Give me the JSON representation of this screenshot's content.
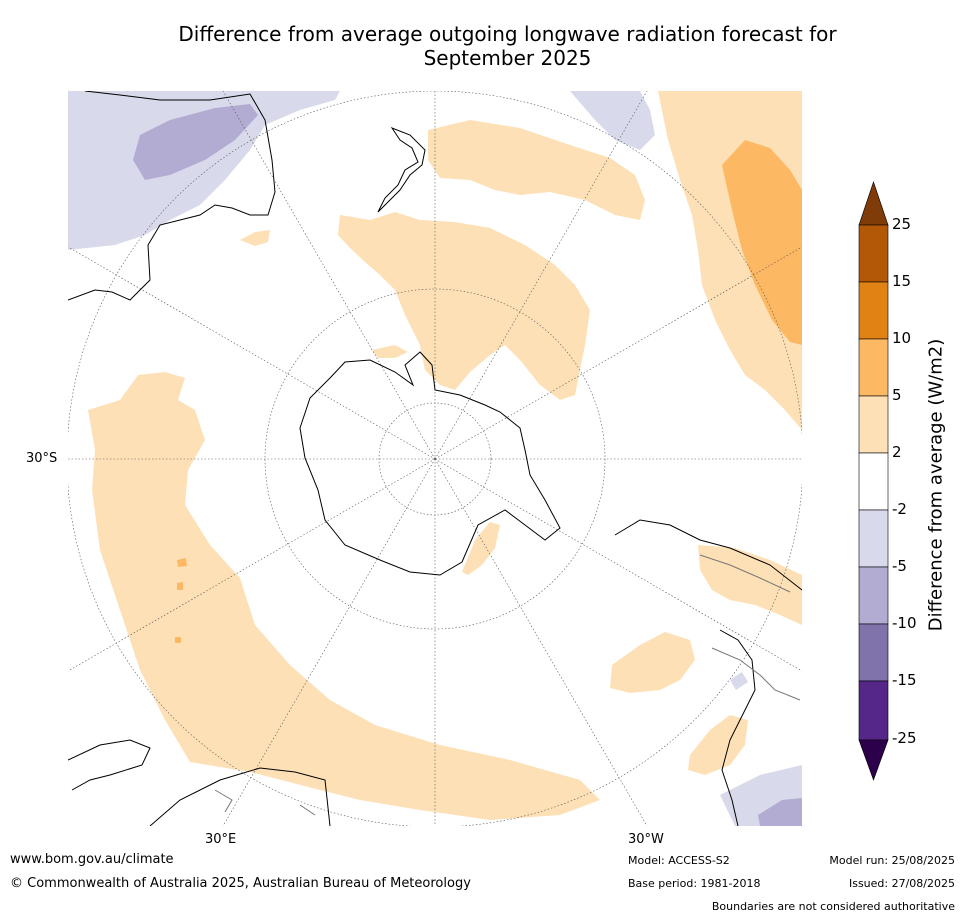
{
  "title": {
    "line1": "Difference from average outgoing longwave radiation forecast for",
    "line2": "September 2025"
  },
  "map": {
    "projection": "south-polar-stereographic",
    "lat_labels": [
      "30°S"
    ],
    "lon_labels": [
      "30°E",
      "30°W"
    ]
  },
  "colorbar": {
    "title": "Difference from average (W/m2)",
    "ticks": [
      "25",
      "15",
      "10",
      "5",
      "2",
      "-2",
      "-5",
      "-10",
      "-15",
      "-25"
    ],
    "colors": {
      "over": "#7f3b08",
      "15_25": "#b35806",
      "10_15": "#e08214",
      "5_10": "#fdb863",
      "2_5": "#fee0b6",
      "m2_2": "#ffffff",
      "m5_m2": "#d8daeb",
      "m10_m5": "#b2abd2",
      "m15_m10": "#8073ac",
      "m25_m15": "#542788",
      "under": "#2d004b"
    }
  },
  "footer": {
    "url": "www.bom.gov.au/climate",
    "copyright": "© Commonwealth of Australia 2025, Australian Bureau of Meteorology",
    "model": "Model: ACCESS-S2",
    "base_period": "Base period: 1981-2018",
    "model_run": "Model run: 25/08/2025",
    "issued": "Issued: 27/08/2025",
    "disclaimer": "Boundaries are not considered authoritative"
  }
}
